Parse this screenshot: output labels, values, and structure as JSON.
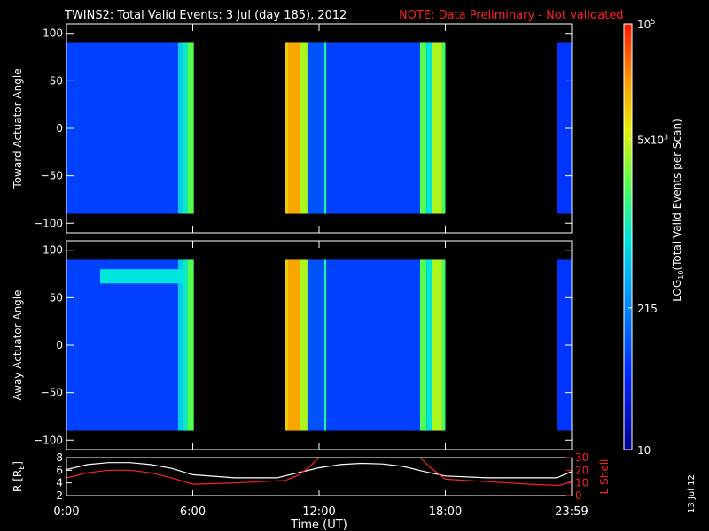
{
  "header": {
    "title": "TWINS2: Total Valid Events:  3 Jul (day 185), 2012",
    "note": "NOTE: Data Preliminary - Not validated",
    "note_color": "#ff2020"
  },
  "side_date": "13 Jul 12",
  "chart_data": [
    {
      "type": "heatmap",
      "ylabel": "Toward Actuator Angle",
      "ylim": [
        -110,
        110
      ],
      "yticks": [
        -100,
        -50,
        0,
        50,
        100
      ],
      "xlim": [
        0,
        24
      ],
      "data_range": [
        -90,
        90
      ],
      "blocks": [
        {
          "start": 0.0,
          "end": 5.3,
          "level": 0.22
        },
        {
          "start": 5.3,
          "end": 5.55,
          "level": 0.45
        },
        {
          "start": 5.55,
          "end": 5.75,
          "level": 0.52
        },
        {
          "start": 5.75,
          "end": 6.05,
          "level": 0.62
        },
        {
          "start": 10.4,
          "end": 10.55,
          "level": 0.8
        },
        {
          "start": 10.55,
          "end": 11.1,
          "level": 0.85
        },
        {
          "start": 11.1,
          "end": 11.45,
          "level": 0.7
        },
        {
          "start": 11.45,
          "end": 12.25,
          "level": 0.25
        },
        {
          "start": 12.25,
          "end": 12.35,
          "level": 0.55
        },
        {
          "start": 12.35,
          "end": 16.8,
          "level": 0.22
        },
        {
          "start": 16.8,
          "end": 17.1,
          "level": 0.62
        },
        {
          "start": 17.1,
          "end": 17.35,
          "level": 0.5
        },
        {
          "start": 17.35,
          "end": 17.85,
          "level": 0.7
        },
        {
          "start": 17.85,
          "end": 18.0,
          "level": 0.6
        },
        {
          "start": 23.3,
          "end": 24.0,
          "level": 0.2
        }
      ]
    },
    {
      "type": "heatmap",
      "ylabel": "Away Actuator Angle",
      "ylim": [
        -110,
        110
      ],
      "yticks": [
        -100,
        -50,
        0,
        50,
        100
      ],
      "xlim": [
        0,
        24
      ],
      "data_range": [
        -90,
        90
      ],
      "blocks": [
        {
          "start": 0.0,
          "end": 5.3,
          "level": 0.22
        },
        {
          "start": 5.3,
          "end": 5.55,
          "level": 0.45
        },
        {
          "start": 5.55,
          "end": 5.75,
          "level": 0.52
        },
        {
          "start": 5.75,
          "end": 6.05,
          "level": 0.62
        },
        {
          "start": 10.4,
          "end": 10.55,
          "level": 0.8
        },
        {
          "start": 10.55,
          "end": 11.1,
          "level": 0.85
        },
        {
          "start": 11.1,
          "end": 11.45,
          "level": 0.7
        },
        {
          "start": 11.45,
          "end": 12.25,
          "level": 0.25
        },
        {
          "start": 12.25,
          "end": 12.35,
          "level": 0.55
        },
        {
          "start": 12.35,
          "end": 16.8,
          "level": 0.22
        },
        {
          "start": 16.8,
          "end": 17.1,
          "level": 0.62
        },
        {
          "start": 17.1,
          "end": 17.35,
          "level": 0.5
        },
        {
          "start": 17.35,
          "end": 17.85,
          "level": 0.7
        },
        {
          "start": 17.85,
          "end": 18.0,
          "level": 0.6
        },
        {
          "start": 23.3,
          "end": 24.0,
          "level": 0.2
        }
      ],
      "band": {
        "y_from": 65,
        "y_to": 80,
        "x_start": 1.6,
        "x_end": 5.6,
        "level": 0.5
      }
    },
    {
      "type": "line",
      "xlabel": "Time (UT)",
      "xlim": [
        0,
        24
      ],
      "xticks": [
        "0:00",
        "6:00",
        "12:00",
        "18:00",
        "23:59"
      ],
      "xtick_values": [
        0,
        6,
        12,
        18,
        24
      ],
      "ylabel_left": "R [RE]",
      "ylabel_left_main": "R [R",
      "ylabel_left_sub": "E",
      "ylabel_left_close": "]",
      "ylim_left": [
        2,
        8
      ],
      "yticks_left": [
        2,
        4,
        6,
        8
      ],
      "ylabel_right": "L Shell",
      "ylim_right": [
        0,
        30
      ],
      "yticks_right": [
        0,
        10,
        20,
        30
      ],
      "right_color": "#ff2020",
      "series": [
        {
          "axis": "left",
          "color": "#ffffff",
          "x": [
            0,
            1,
            2,
            3,
            4,
            5,
            6,
            8,
            10,
            11,
            12,
            13,
            14,
            15,
            16,
            17,
            18,
            20,
            22,
            23.3,
            24
          ],
          "y": [
            6.1,
            6.9,
            7.2,
            7.2,
            6.9,
            6.3,
            5.3,
            4.8,
            4.8,
            5.6,
            6.4,
            6.9,
            7.1,
            7.0,
            6.6,
            5.8,
            5.1,
            4.8,
            4.8,
            4.8,
            5.8
          ]
        },
        {
          "axis": "right",
          "color": "#ff2020",
          "x": [
            0,
            1,
            2,
            3,
            4,
            5,
            6,
            8,
            10.4,
            11,
            11.5,
            12,
            16.8,
            17.3,
            18,
            20,
            22,
            23.4,
            24
          ],
          "y": [
            14,
            18,
            20,
            20,
            18,
            14,
            9,
            10,
            12,
            16,
            22,
            30,
            30,
            22,
            13,
            11,
            9,
            8,
            11
          ]
        }
      ]
    }
  ],
  "colorbar": {
    "ylabel_main": "LOG",
    "ylabel_sub": "10",
    "ylabel_rest": "(Total Valid Events per Scan)",
    "ticks": [
      {
        "label": "10",
        "level": 0.0
      },
      {
        "label": "215",
        "level": 0.333
      },
      {
        "label": "5x10",
        "exp": "3",
        "level": 0.729
      },
      {
        "label": "10",
        "exp": "5",
        "level": 1.0
      }
    ]
  }
}
